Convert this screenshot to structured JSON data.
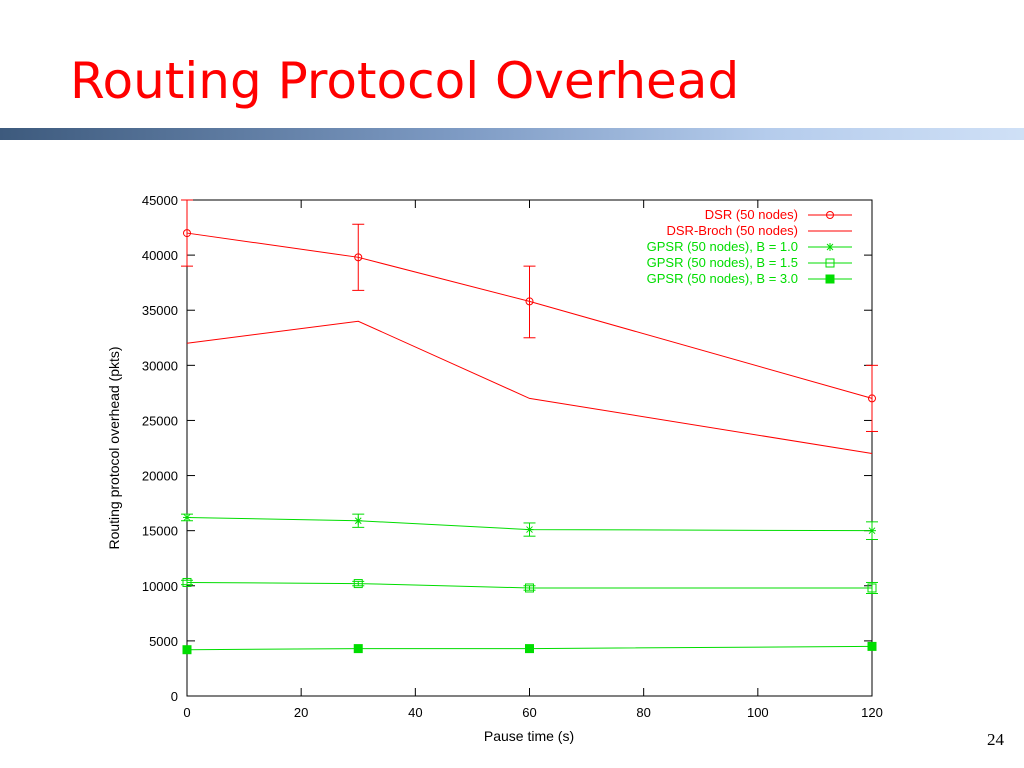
{
  "slide": {
    "title": "Routing Protocol Overhead",
    "page_number": "24",
    "title_color": "#ff0000"
  },
  "chart_data": {
    "type": "line",
    "xlabel": "Pause time (s)",
    "ylabel": "Routing protocol overhead (pkts)",
    "xlim": [
      0,
      120
    ],
    "ylim": [
      0,
      45000
    ],
    "xticks": [
      0,
      20,
      40,
      60,
      80,
      100,
      120
    ],
    "yticks": [
      0,
      5000,
      10000,
      15000,
      20000,
      25000,
      30000,
      35000,
      40000,
      45000
    ],
    "grid": false,
    "legend_position": "top-right",
    "series": [
      {
        "name": "DSR (50 nodes)",
        "color": "#ff0000",
        "marker": "open-circle",
        "x": [
          0,
          30,
          60,
          120
        ],
        "y": [
          42000,
          39800,
          35800,
          27000
        ],
        "error_low": [
          39000,
          36800,
          32500,
          24000
        ],
        "error_high": [
          45000,
          42800,
          39000,
          30000
        ]
      },
      {
        "name": "DSR-Broch (50 nodes)",
        "color": "#ff0000",
        "marker": "none",
        "x": [
          0,
          30,
          60,
          120
        ],
        "y": [
          32000,
          34000,
          27000,
          22000
        ]
      },
      {
        "name": "GPSR (50 nodes), B = 1.0",
        "color": "#00dd00",
        "marker": "star",
        "x": [
          0,
          30,
          60,
          120
        ],
        "y": [
          16200,
          15900,
          15100,
          15000
        ],
        "error_low": [
          15900,
          15300,
          14500,
          14200
        ],
        "error_high": [
          16500,
          16500,
          15700,
          15800
        ]
      },
      {
        "name": "GPSR (50 nodes), B = 1.5",
        "color": "#00dd00",
        "marker": "open-square",
        "x": [
          0,
          30,
          60,
          120
        ],
        "y": [
          10300,
          10200,
          9800,
          9800
        ],
        "error_low": [
          10100,
          10000,
          9600,
          9300
        ],
        "error_high": [
          10500,
          10400,
          10000,
          10300
        ]
      },
      {
        "name": "GPSR (50 nodes), B = 3.0",
        "color": "#00dd00",
        "marker": "filled-square",
        "x": [
          0,
          30,
          60,
          120
        ],
        "y": [
          4200,
          4300,
          4300,
          4500
        ]
      }
    ]
  }
}
